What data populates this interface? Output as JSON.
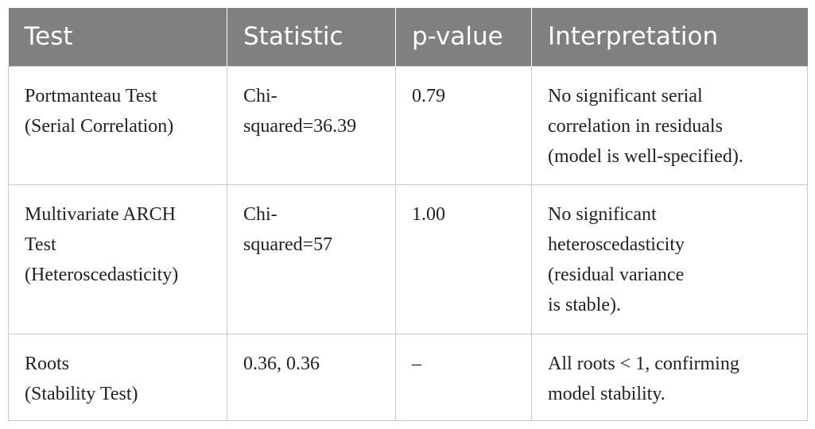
{
  "table": {
    "header": [
      "Test",
      "Statistic",
      "p-value",
      "Interpretation"
    ],
    "rows": [
      [
        [
          "Portmanteau Test",
          "(Serial Correlation)"
        ],
        [
          "Chi-",
          "squared=36.39"
        ],
        [
          "0.79"
        ],
        [
          "No significant serial",
          "correlation in residuals",
          "(model is well-specified)."
        ]
      ],
      [
        [
          "Multivariate ARCH",
          "Test",
          "(Heteroscedasticity)"
        ],
        [
          "Chi-",
          "squared=57"
        ],
        [
          "1.00"
        ],
        [
          "No significant",
          "heteroscedasticity",
          "(residual variance",
          "is stable)."
        ]
      ],
      [
        [
          "Roots",
          "(Stability Test)"
        ],
        [
          "0.36, 0.36"
        ],
        [
          "–"
        ],
        [
          "All roots < 1, confirming",
          "model stability."
        ]
      ]
    ]
  }
}
